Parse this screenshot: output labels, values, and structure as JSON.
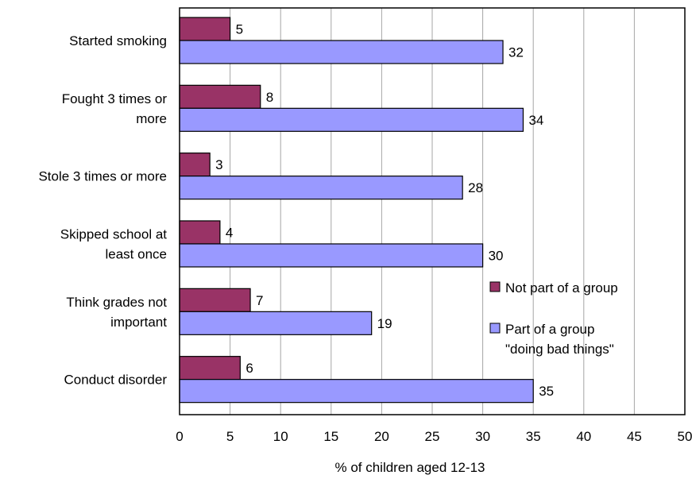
{
  "chart_data": {
    "type": "bar",
    "orientation": "horizontal",
    "categories": [
      [
        "Started smoking"
      ],
      [
        "Fought 3 times or",
        "more"
      ],
      [
        "Stole 3 times or more"
      ],
      [
        "Skipped school at",
        "least once"
      ],
      [
        "Think grades not",
        "important"
      ],
      [
        "Conduct disorder"
      ]
    ],
    "series": [
      {
        "name": "Not part of a group",
        "legend_lines": [
          "Not part of a group"
        ],
        "color": "#993366",
        "values": [
          5,
          8,
          3,
          4,
          7,
          6
        ]
      },
      {
        "name": "Part of a group \"doing bad things\"",
        "legend_lines": [
          "Part of a group",
          "\"doing bad things\""
        ],
        "color": "#9999ff",
        "values": [
          32,
          34,
          28,
          30,
          19,
          35
        ]
      }
    ],
    "xlabel": "% of children aged 12-13",
    "ylabel": "",
    "title": "",
    "xlim": [
      0,
      50
    ],
    "ticks": [
      0,
      5,
      10,
      15,
      20,
      25,
      30,
      35,
      40,
      45,
      50
    ],
    "grid": true,
    "legend_position": "right"
  }
}
